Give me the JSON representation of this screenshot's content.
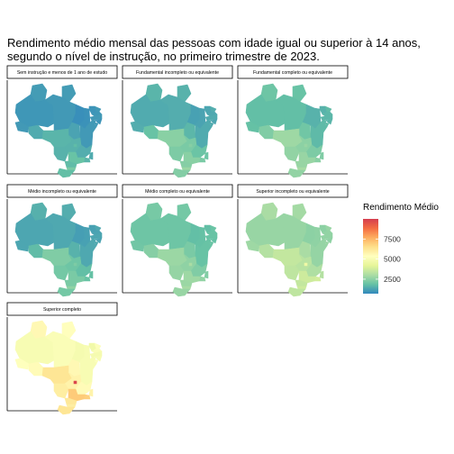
{
  "title_lines": [
    "Rendimento médio mensal das pessoas com idade igual ou superior à 14 anos,",
    "segundo o nível de instrução, no primeiro trimestre de 2023."
  ],
  "chart_data": {
    "type": "heatmap",
    "map": "Brasil por Unidade da Federação",
    "color_scale": {
      "palette": "Spectral (reversed)",
      "stops": [
        "#3288bd",
        "#66c2a5",
        "#abdda4",
        "#e6f598",
        "#ffffbf",
        "#fee08b",
        "#fdae61",
        "#f46d43",
        "#d53e4f"
      ],
      "domain": [
        700,
        10000
      ]
    },
    "legend": {
      "title": "Rendimento Médio",
      "placement": "right",
      "ticks": [
        2500,
        5000,
        7500
      ],
      "tick_labels": [
        "2500",
        "5000",
        "7500"
      ]
    },
    "panels": [
      {
        "name": "Sem instrução e menos de 1 ano de estudo",
        "values": {
          "AC": 1050,
          "AM": 1000,
          "RR": 1100,
          "PA": 1050,
          "AP": 1100,
          "RO": 1400,
          "TO": 1250,
          "MA": 850,
          "PI": 900,
          "CE": 950,
          "RN": 1050,
          "PB": 1000,
          "PE": 1050,
          "AL": 950,
          "SE": 1050,
          "BA": 1050,
          "MT": 1600,
          "MS": 1550,
          "GO": 1550,
          "DF": 1750,
          "MG": 1450,
          "ES": 1400,
          "RJ": 1600,
          "SP": 1900,
          "PR": 1750,
          "SC": 2200,
          "RS": 1800
        }
      },
      {
        "name": "Fundamental incompleto ou equivalente",
        "values": {
          "AC": 1450,
          "AM": 1400,
          "RR": 1600,
          "PA": 1450,
          "AP": 1550,
          "RO": 1900,
          "TO": 1650,
          "MA": 1200,
          "PI": 1250,
          "CE": 1300,
          "RN": 1450,
          "PB": 1350,
          "PE": 1400,
          "AL": 1300,
          "SE": 1400,
          "BA": 1400,
          "MT": 2450,
          "MS": 2250,
          "GO": 2200,
          "DF": 2400,
          "MG": 1950,
          "ES": 2000,
          "RJ": 2200,
          "SP": 2450,
          "PR": 2400,
          "SC": 2750,
          "RS": 2350
        }
      },
      {
        "name": "Fundamental completo ou equivalente",
        "values": {
          "AC": 1850,
          "AM": 1800,
          "RR": 2000,
          "PA": 1800,
          "AP": 1900,
          "RO": 2300,
          "TO": 2050,
          "MA": 1550,
          "PI": 1550,
          "CE": 1550,
          "RN": 1750,
          "PB": 1650,
          "PE": 1650,
          "AL": 1600,
          "SE": 1750,
          "BA": 1700,
          "MT": 2800,
          "MS": 2600,
          "GO": 2500,
          "DF": 2700,
          "MG": 2250,
          "ES": 2300,
          "RJ": 2450,
          "SP": 2700,
          "PR": 2700,
          "SC": 2950,
          "RS": 2600
        }
      },
      {
        "name": "Médio incompleto ou equivalente",
        "values": {
          "AC": 1300,
          "AM": 1300,
          "RR": 1500,
          "PA": 1350,
          "AP": 1450,
          "RO": 1750,
          "TO": 1550,
          "MA": 1150,
          "PI": 1200,
          "CE": 1200,
          "RN": 1350,
          "PB": 1250,
          "PE": 1300,
          "AL": 1250,
          "SE": 1350,
          "BA": 1350,
          "MT": 2300,
          "MS": 2100,
          "GO": 2000,
          "DF": 2250,
          "MG": 1800,
          "ES": 1850,
          "RJ": 1900,
          "SP": 2200,
          "PR": 2200,
          "SC": 2550,
          "RS": 2100
        }
      },
      {
        "name": "Médio completo ou equivalente",
        "values": {
          "AC": 2050,
          "AM": 2000,
          "RR": 2150,
          "PA": 2000,
          "AP": 2100,
          "RO": 2400,
          "TO": 2200,
          "MA": 1800,
          "PI": 1850,
          "CE": 1800,
          "RN": 1950,
          "PB": 1900,
          "PE": 1900,
          "AL": 1850,
          "SE": 1950,
          "BA": 1900,
          "MT": 2750,
          "MS": 2650,
          "GO": 2550,
          "DF": 3000,
          "MG": 2300,
          "ES": 2350,
          "RJ": 2600,
          "SP": 2800,
          "PR": 2750,
          "SC": 2950,
          "RS": 2700
        }
      },
      {
        "name": "Superior incompleto ou equivalente",
        "values": {
          "AC": 2800,
          "AM": 2700,
          "RR": 3000,
          "PA": 2700,
          "AP": 2900,
          "RO": 3200,
          "TO": 3000,
          "MA": 2500,
          "PI": 2550,
          "CE": 2500,
          "RN": 2700,
          "PB": 2600,
          "PE": 2600,
          "AL": 2550,
          "SE": 2700,
          "BA": 2650,
          "MT": 3500,
          "MS": 3400,
          "GO": 3300,
          "DF": 4600,
          "MG": 3100,
          "ES": 3200,
          "RJ": 3800,
          "SP": 3700,
          "PR": 3500,
          "SC": 3700,
          "RS": 3400
        }
      },
      {
        "name": "Superior completo",
        "values": {
          "AC": 5300,
          "AM": 5000,
          "RR": 5600,
          "PA": 5100,
          "AP": 5400,
          "RO": 5500,
          "TO": 5600,
          "MA": 4900,
          "PI": 5000,
          "CE": 4700,
          "RN": 5200,
          "PB": 5100,
          "PE": 4900,
          "AL": 5000,
          "SE": 5200,
          "BA": 5000,
          "MT": 6300,
          "MS": 6000,
          "GO": 5800,
          "DF": 9800,
          "MG": 5500,
          "ES": 5800,
          "RJ": 6900,
          "SP": 7000,
          "PR": 6200,
          "SC": 6000,
          "RS": 6300
        }
      }
    ]
  }
}
